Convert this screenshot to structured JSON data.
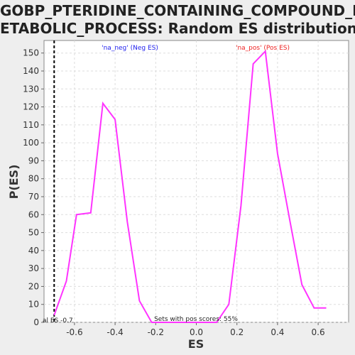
{
  "chart_data": {
    "type": "line",
    "title_lines": [
      "GOBP_PTERIDINE_CONTAINING_COMPOUND_M",
      "ETABOLIC_PROCESS: Random ES distribution"
    ],
    "xlabel": "ES",
    "ylabel": "P(ES)",
    "xlim": [
      -0.75,
      0.75
    ],
    "ylim": [
      0,
      157
    ],
    "xticks": [
      "-0.6",
      "-0.4",
      "-0.2",
      "0.0",
      "0.2",
      "0.4",
      "0.6"
    ],
    "yticks": [
      "0",
      "10",
      "20",
      "30",
      "40",
      "50",
      "60",
      "70",
      "80",
      "90",
      "100",
      "110",
      "120",
      "130",
      "140",
      "150"
    ],
    "grid": true,
    "series": [
      {
        "color": "#ff33ff",
        "x": [
          -0.7,
          -0.64,
          -0.59,
          -0.52,
          -0.46,
          -0.4,
          -0.34,
          -0.28,
          -0.22,
          -0.16,
          -0.1,
          0.1,
          0.16,
          0.22,
          0.28,
          0.34,
          0.4,
          0.46,
          0.52,
          0.58,
          0.64
        ],
        "y": [
          4,
          23,
          60,
          61,
          122,
          113,
          56,
          12,
          0,
          0,
          0,
          0,
          10,
          65,
          144,
          151,
          94,
          57,
          21,
          8,
          8
        ]
      }
    ],
    "vline": {
      "x": -0.7,
      "label": "al ES -0.7"
    },
    "annotations": {
      "neg": {
        "text": "'na_neg' (Neg ES)",
        "color": "#2222ee"
      },
      "pos": {
        "text": "'na_pos' (Pos ES)",
        "color": "#ee2222"
      },
      "bottom": {
        "text": "Sets with pos scores: 55%",
        "color": "#222222"
      }
    }
  }
}
